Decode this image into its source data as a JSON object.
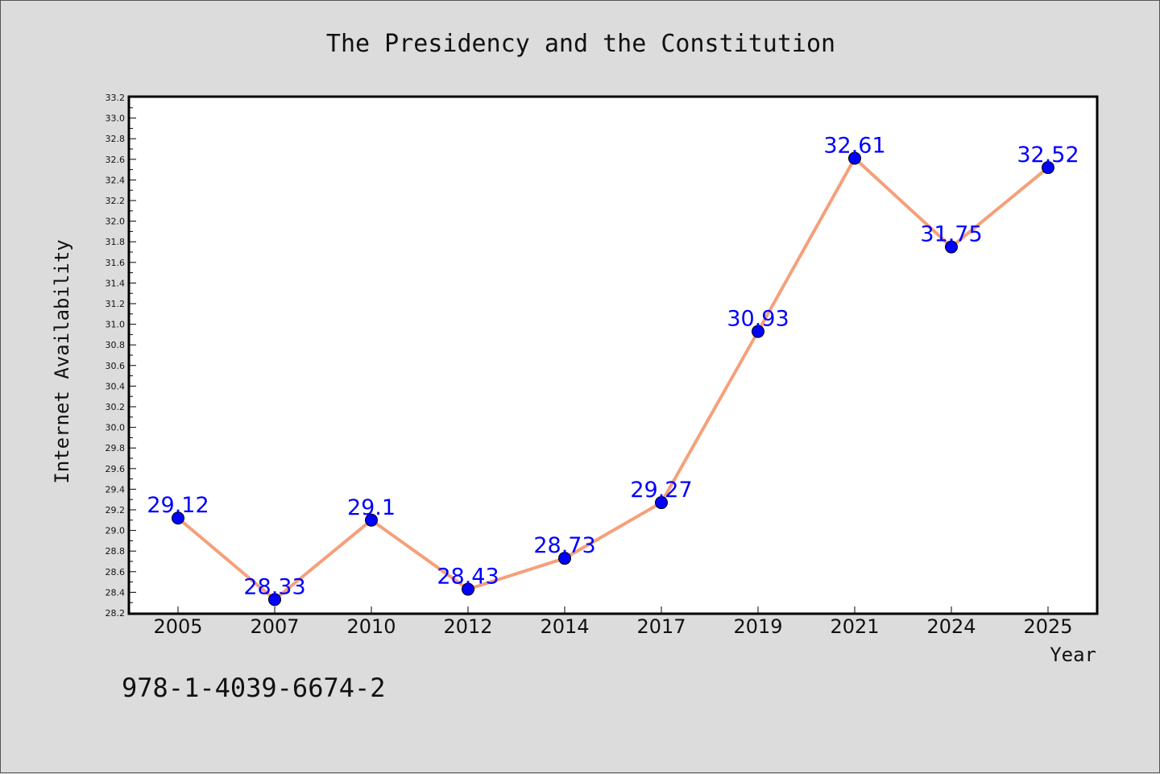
{
  "chart_data": {
    "type": "line",
    "title": "The Presidency and the Constitution",
    "xlabel": "Year",
    "ylabel": "Internet Availability",
    "categories": [
      "2005",
      "2007",
      "2010",
      "2012",
      "2014",
      "2017",
      "2019",
      "2021",
      "2024",
      "2025"
    ],
    "series": [
      {
        "values": [
          29.12,
          28.33,
          29.1,
          28.43,
          28.73,
          29.27,
          30.93,
          32.61,
          31.75,
          32.52
        ],
        "data_labels": [
          "29.12",
          "28.33",
          "29.1",
          "28.43",
          "28.73",
          "29.27",
          "30.93",
          "32.61",
          "31.75",
          "32.52"
        ],
        "line_color": "#f5a07a",
        "marker_color": "#0000ff"
      }
    ],
    "ylim": [
      28.2,
      33.2
    ],
    "yticks": [
      "28.2",
      "28.4",
      "28.6",
      "28.8",
      "29.0",
      "29.2",
      "29.4",
      "29.6",
      "29.8",
      "30.0",
      "30.2",
      "30.4",
      "30.6",
      "30.8",
      "31.0",
      "31.2",
      "31.4",
      "31.6",
      "31.8",
      "32.0",
      "32.2",
      "32.4",
      "32.6",
      "32.8",
      "33.0",
      "33.2"
    ],
    "grid": false,
    "legend": "none"
  },
  "footer": {
    "isbn": "978-1-4039-6674-2"
  },
  "colors": {
    "background": "#dcdcdc",
    "plot_background": "#ffffff",
    "line": "#f5a07a",
    "marker": "#0000ff",
    "data_label": "#0000ff"
  }
}
